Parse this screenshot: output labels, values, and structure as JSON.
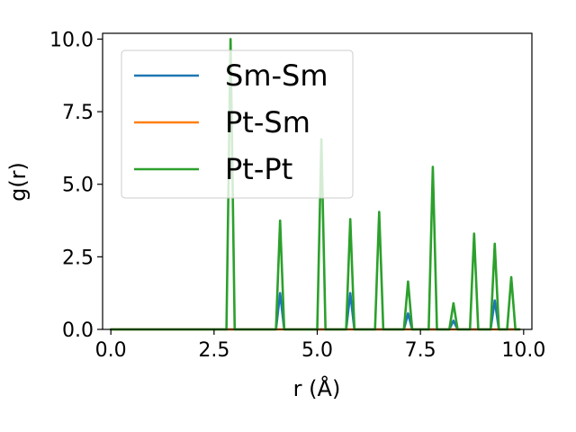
{
  "chart_data": {
    "type": "line",
    "title": "",
    "xlabel": "r (Å)",
    "ylabel": "g(r)",
    "xlim": [
      -0.2,
      10.2
    ],
    "ylim": [
      0.0,
      10.2
    ],
    "xticks": [
      0.0,
      2.5,
      5.0,
      7.5,
      10.0
    ],
    "yticks": [
      0.0,
      2.5,
      5.0,
      7.5,
      10.0
    ],
    "xtick_labels": [
      "0.0",
      "2.5",
      "5.0",
      "7.5",
      "10.0"
    ],
    "ytick_labels": [
      "0.0",
      "2.5",
      "5.0",
      "7.5",
      "10.0"
    ],
    "grid": false,
    "legend_position": "top-left",
    "series": [
      {
        "name": "Sm-Sm",
        "color": "#1f77b4",
        "x": [
          0.0,
          2.8,
          2.9,
          3.0,
          4.0,
          4.1,
          4.2,
          5.0,
          5.1,
          5.2,
          5.7,
          5.8,
          5.9,
          6.4,
          6.5,
          6.6,
          7.1,
          7.2,
          7.3,
          7.7,
          7.8,
          7.9,
          8.2,
          8.3,
          8.4,
          8.7,
          8.8,
          8.9,
          9.2,
          9.3,
          9.4,
          9.6,
          9.7,
          9.8,
          9.9
        ],
        "values": [
          0.0,
          0.0,
          0.0,
          0.0,
          0.0,
          1.25,
          0.0,
          0.0,
          0.0,
          0.0,
          0.0,
          1.25,
          0.0,
          0.0,
          0.0,
          0.0,
          0.0,
          0.55,
          0.0,
          0.0,
          0.0,
          0.0,
          0.0,
          0.3,
          0.0,
          0.0,
          0.0,
          0.0,
          0.0,
          1.0,
          0.0,
          0.0,
          0.0,
          0.0,
          0.0
        ]
      },
      {
        "name": "Pt-Sm",
        "color": "#ff7f0e",
        "x": [
          0.0,
          2.8,
          2.9,
          3.0,
          4.0,
          4.1,
          4.2,
          5.0,
          5.1,
          5.2,
          5.7,
          5.8,
          5.9,
          6.4,
          6.5,
          6.6,
          7.1,
          7.2,
          7.3,
          7.7,
          7.8,
          7.9,
          8.2,
          8.3,
          8.4,
          8.7,
          8.8,
          8.9,
          9.2,
          9.3,
          9.4,
          9.6,
          9.7,
          9.8,
          9.9
        ],
        "values": [
          0.0,
          0.0,
          0.0,
          0.0,
          0.0,
          0.0,
          0.0,
          0.0,
          0.0,
          0.0,
          0.0,
          0.0,
          0.0,
          0.0,
          0.0,
          0.0,
          0.0,
          0.0,
          0.0,
          0.0,
          0.0,
          0.0,
          0.0,
          0.0,
          0.0,
          0.0,
          0.0,
          0.0,
          0.0,
          0.0,
          0.0,
          0.0,
          0.0,
          0.0,
          0.0
        ]
      },
      {
        "name": "Pt-Pt",
        "color": "#2ca02c",
        "x": [
          0.0,
          2.8,
          2.9,
          3.0,
          4.0,
          4.1,
          4.2,
          5.0,
          5.1,
          5.2,
          5.7,
          5.8,
          5.9,
          6.4,
          6.5,
          6.6,
          7.1,
          7.2,
          7.3,
          7.7,
          7.8,
          7.9,
          8.2,
          8.3,
          8.4,
          8.7,
          8.8,
          8.9,
          9.2,
          9.3,
          9.4,
          9.6,
          9.7,
          9.8,
          9.9
        ],
        "values": [
          0.0,
          0.0,
          10.0,
          0.0,
          0.0,
          3.75,
          0.0,
          0.0,
          6.55,
          0.0,
          0.0,
          3.8,
          0.0,
          0.0,
          4.05,
          0.0,
          0.0,
          1.65,
          0.0,
          0.0,
          5.6,
          0.0,
          0.0,
          0.9,
          0.0,
          0.0,
          3.3,
          0.0,
          0.0,
          2.95,
          0.0,
          0.0,
          1.8,
          0.0,
          0.0
        ]
      }
    ]
  }
}
